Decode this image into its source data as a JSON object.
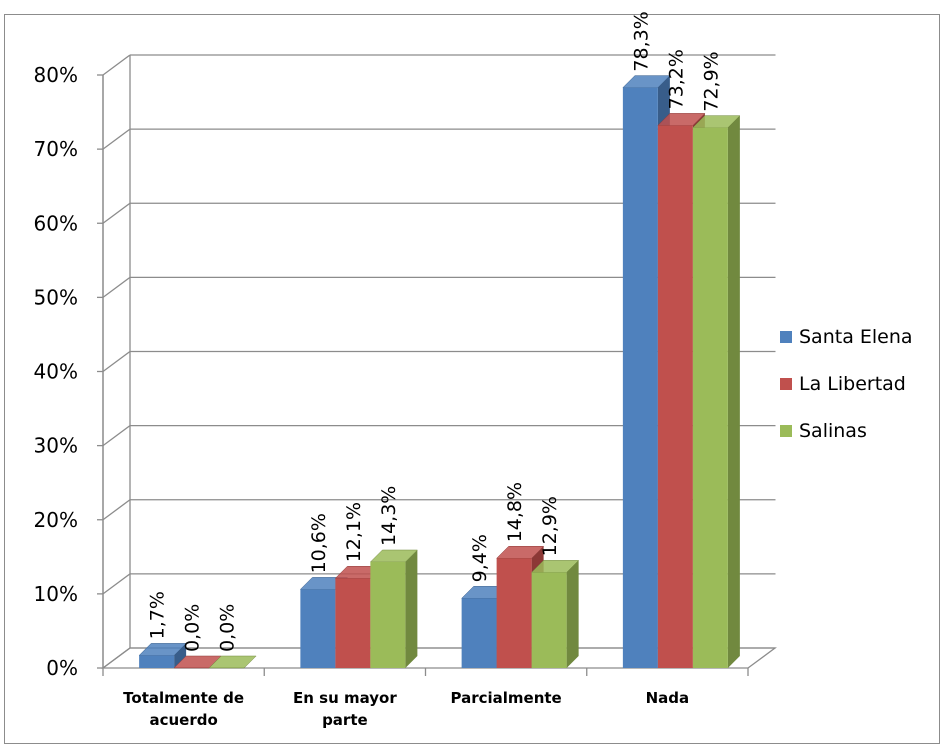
{
  "chart_data": {
    "type": "bar",
    "style": "3d-clustered-column",
    "categories": [
      [
        "Totalmente de",
        "acuerdo"
      ],
      [
        "En su mayor",
        "parte"
      ],
      [
        "Parcialmente"
      ],
      [
        "Nada"
      ]
    ],
    "series": [
      {
        "name": "Santa Elena",
        "color": "#4f81bd",
        "side": "#385d8a",
        "values": [
          1.7,
          10.6,
          9.4,
          78.3
        ],
        "labels": [
          "1,7%",
          "10,6%",
          "9,4%",
          "78,3%"
        ]
      },
      {
        "name": "La Libertad",
        "color": "#c0504d",
        "side": "#8c3836",
        "values": [
          0.0,
          12.1,
          14.8,
          73.2
        ],
        "labels": [
          "0,0%",
          "12,1%",
          "14,8%",
          "73,2%"
        ]
      },
      {
        "name": "Salinas",
        "color": "#9bbb59",
        "side": "#71893f",
        "values": [
          0.0,
          14.3,
          12.9,
          72.9
        ],
        "labels": [
          "0,0%",
          "14,3%",
          "12,9%",
          "72,9%"
        ]
      }
    ],
    "yticks": [
      "0%",
      "10%",
      "20%",
      "30%",
      "40%",
      "50%",
      "60%",
      "70%",
      "80%"
    ],
    "ylim": [
      0,
      80
    ],
    "title": "",
    "xlabel": "",
    "ylabel": "",
    "grid": true,
    "legend_position": "right"
  }
}
